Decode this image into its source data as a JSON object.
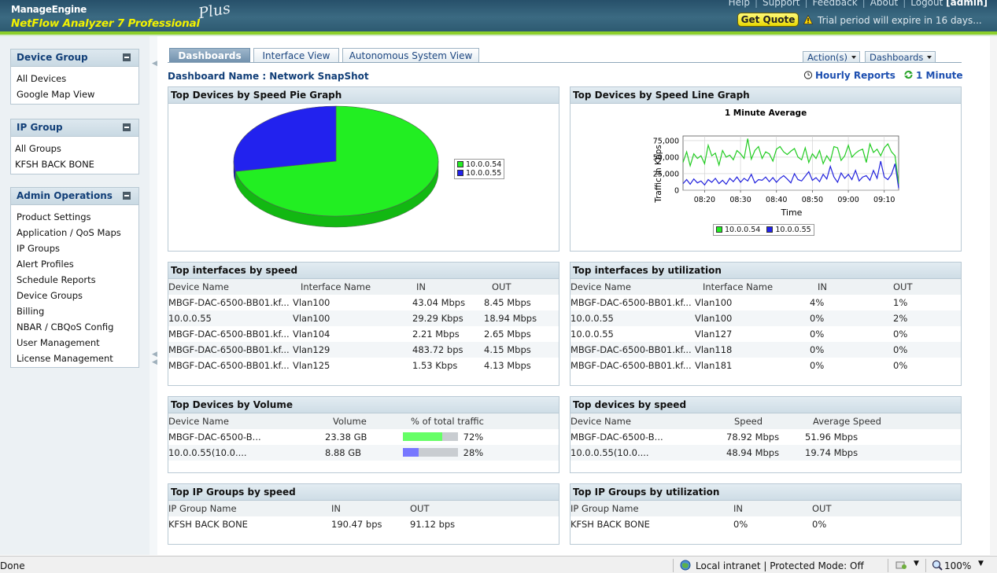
{
  "header": {
    "brand_line1": "ManageEngine",
    "brand_line2": "NetFlow Analyzer 7 Professional",
    "brand_plus": "Plus",
    "links": [
      "Help",
      "Support",
      "Feedback",
      "About",
      "Logout"
    ],
    "user": "[admin]",
    "get_quote": "Get Quote",
    "trial_text": "Trial period will expire in 16 days..."
  },
  "sidebar": {
    "device_group": {
      "title": "Device Group",
      "items": [
        "All Devices",
        "Google Map View"
      ]
    },
    "ip_group": {
      "title": "IP Group",
      "items": [
        "All Groups",
        "KFSH BACK BONE"
      ]
    },
    "admin_ops": {
      "title": "Admin Operations",
      "items": [
        "Product Settings",
        "Application / QoS Maps",
        "IP Groups",
        "Alert Profiles",
        "Schedule Reports",
        "Device Groups",
        "Billing",
        "NBAR / CBQoS Config",
        "User Management",
        "License Management"
      ]
    }
  },
  "tabs": [
    "Dashboards",
    "Interface View",
    "Autonomous System View"
  ],
  "actions_dropdown": "Action(s)",
  "dashboards_dropdown": "Dashboards",
  "dashboard_name": "Dashboard Name : Network SnapShot",
  "hourly_reports": "Hourly Reports",
  "refresh_interval": "1 Minute",
  "colors": {
    "green": "#22ee22",
    "blue": "#2222ee"
  },
  "widgets": {
    "pie": {
      "title": "Top Devices by Speed Pie Graph",
      "legend": [
        "10.0.0.54",
        "10.0.0.55"
      ]
    },
    "line": {
      "title": "Top Devices by Speed Line Graph",
      "legend": [
        "10.0.0.54",
        "10.0.0.55"
      ]
    },
    "if_speed": {
      "title": "Top interfaces by speed",
      "headers": [
        "Device Name",
        "Interface Name",
        "IN",
        "OUT"
      ],
      "rows": [
        [
          "MBGF-DAC-6500-BB01.kf...",
          "Vlan100",
          "43.04 Mbps",
          "8.45 Mbps"
        ],
        [
          "10.0.0.55",
          "Vlan100",
          "29.29 Kbps",
          "18.94 Mbps"
        ],
        [
          "MBGF-DAC-6500-BB01.kf...",
          "Vlan104",
          "2.21 Mbps",
          "2.65 Mbps"
        ],
        [
          "MBGF-DAC-6500-BB01.kf...",
          "Vlan129",
          "483.72 bps",
          "4.15 Mbps"
        ],
        [
          "MBGF-DAC-6500-BB01.kf...",
          "Vlan125",
          "1.53 Kbps",
          "4.13 Mbps"
        ]
      ]
    },
    "if_util": {
      "title": "Top interfaces by utilization",
      "headers": [
        "Device Name",
        "Interface Name",
        "IN",
        "OUT"
      ],
      "rows": [
        [
          "MBGF-DAC-6500-BB01.kf...",
          "Vlan100",
          "4%",
          "1%"
        ],
        [
          "10.0.0.55",
          "Vlan100",
          "0%",
          "2%"
        ],
        [
          "10.0.0.55",
          "Vlan127",
          "0%",
          "0%"
        ],
        [
          "MBGF-DAC-6500-BB01.kf...",
          "Vlan118",
          "0%",
          "0%"
        ],
        [
          "MBGF-DAC-6500-BB01.kf...",
          "Vlan181",
          "0%",
          "0%"
        ]
      ]
    },
    "dev_volume": {
      "title": "Top Devices by Volume",
      "headers": [
        "Device Name",
        "Volume",
        "% of total traffic"
      ],
      "rows": [
        {
          "name": "MBGF-DAC-6500-B...",
          "volume": "23.38 GB",
          "pct_label": "72%",
          "pct": 72,
          "color": "#66ff66"
        },
        {
          "name": "10.0.0.55(10.0....",
          "volume": "8.88 GB",
          "pct_label": "28%",
          "pct": 28,
          "color": "#7777ff"
        }
      ]
    },
    "dev_speed": {
      "title": "Top devices by speed",
      "headers": [
        "Device Name",
        "Speed",
        "Average Speed"
      ],
      "rows": [
        [
          "MBGF-DAC-6500-B...",
          "78.92 Mbps",
          "51.96 Mbps"
        ],
        [
          "10.0.0.55(10.0....",
          "48.94 Mbps",
          "19.74 Mbps"
        ]
      ]
    },
    "ipg_speed": {
      "title": "Top IP Groups by speed",
      "headers": [
        "IP Group Name",
        "IN",
        "OUT"
      ],
      "rows": [
        [
          "KFSH BACK BONE",
          "190.47 bps",
          "91.12 bps"
        ]
      ]
    },
    "ipg_util": {
      "title": "Top IP Groups by utilization",
      "headers": [
        "IP Group Name",
        "IN",
        "OUT"
      ],
      "rows": [
        [
          "KFSH BACK BONE",
          "0%",
          "0%"
        ]
      ]
    }
  },
  "chart_data": [
    {
      "type": "pie",
      "labels": [
        "10.0.0.54",
        "10.0.0.55"
      ],
      "values": [
        72,
        28
      ],
      "colors": [
        "#22ee22",
        "#2222ee"
      ]
    },
    {
      "type": "line",
      "title": "1 Minute Average",
      "xlabel": "Time",
      "ylabel": "Traffic in Kbps",
      "x_ticks": [
        "08:20",
        "08:30",
        "08:40",
        "08:50",
        "09:00",
        "09:10"
      ],
      "y_ticks": [
        "0",
        "25,000",
        "50,000",
        "75,000"
      ],
      "ylim": [
        0,
        82000
      ],
      "xlim": [
        0,
        60
      ],
      "grid": true,
      "legend_position": "bottom",
      "series": [
        {
          "name": "10.0.0.54",
          "color": "#22cc22",
          "values": [
            42000,
            58000,
            37000,
            55000,
            48000,
            52000,
            40000,
            68000,
            52000,
            56000,
            38000,
            60000,
            50000,
            53000,
            46000,
            60000,
            55000,
            48000,
            78000,
            47000,
            60000,
            66000,
            48000,
            58000,
            55000,
            44000,
            62000,
            66000,
            58000,
            54000,
            59000,
            63000,
            50000,
            46000,
            64000,
            42000,
            55000,
            48000,
            60000,
            40000,
            52000,
            44000,
            66000,
            64000,
            45000,
            52000,
            68000,
            50000,
            56000,
            60000,
            62000,
            42000,
            70000,
            57000,
            62000,
            52000,
            64000,
            70000,
            58000,
            52000,
            10000
          ]
        },
        {
          "name": "10.0.0.55",
          "color": "#2222dd",
          "values": [
            10000,
            16000,
            9000,
            17000,
            11000,
            14000,
            8000,
            16000,
            12000,
            18000,
            10000,
            15000,
            9000,
            18000,
            13000,
            20000,
            12000,
            18000,
            14000,
            24000,
            11000,
            16000,
            15000,
            20000,
            13000,
            19000,
            12000,
            18000,
            22000,
            17000,
            11000,
            25000,
            16000,
            14000,
            21000,
            28000,
            15000,
            19000,
            13000,
            24000,
            17000,
            36000,
            20000,
            12000,
            26000,
            18000,
            24000,
            16000,
            30000,
            14000,
            20000,
            22000,
            15000,
            30000,
            18000,
            44000,
            20000,
            16000,
            24000,
            40000,
            3000
          ]
        }
      ]
    }
  ],
  "status": {
    "done": "Done",
    "zone": "Local intranet | Protected Mode: Off",
    "zoom": "100%"
  }
}
